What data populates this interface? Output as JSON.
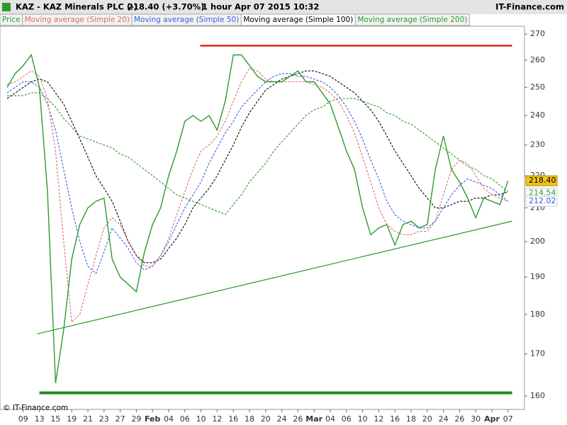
{
  "header": {
    "symbol": "KAZ - KAZ Minerals PLC (-)",
    "quote": "218.40 (+3.70%)",
    "period": "1 hour  Apr 07 2015 10:32",
    "brand": "IT-Finance.com"
  },
  "footer": "© IT-Finance.com",
  "chart_data": {
    "type": "line",
    "log_scale": true,
    "categories": [
      null,
      null,
      "09",
      null,
      "13",
      null,
      "15",
      null,
      "19",
      null,
      "21",
      null,
      "23",
      null,
      "27",
      null,
      "29",
      null,
      "Feb",
      null,
      "04",
      null,
      "06",
      null,
      "10",
      null,
      "12",
      null,
      "16",
      null,
      "18",
      null,
      "20",
      null,
      "24",
      null,
      "26",
      null,
      "Mar",
      null,
      "04",
      null,
      "06",
      null,
      "10",
      null,
      "12",
      null,
      "16",
      null,
      "18",
      null,
      "20",
      null,
      "24",
      null,
      "26",
      null,
      "30",
      null,
      "Apr",
      null,
      "07"
    ],
    "ylim": [
      156.9,
      273.1
    ],
    "yticks": [
      160,
      170,
      180,
      190,
      200,
      210,
      220,
      230,
      240,
      250,
      260,
      270
    ],
    "series": [
      {
        "name": "Price",
        "color": "#2e9a2e",
        "dashed": false,
        "values": [
          250,
          255,
          258,
          262,
          250,
          215,
          163,
          176,
          195,
          205,
          210,
          212,
          213,
          195,
          190,
          188,
          186,
          197,
          205,
          210,
          220,
          228,
          238,
          240,
          238,
          240,
          235,
          245,
          262,
          262,
          258,
          254,
          252,
          252,
          252,
          254,
          256,
          252,
          252,
          248,
          244,
          236,
          228,
          222,
          210,
          202,
          204,
          205,
          199,
          205,
          206,
          204,
          205,
          222,
          233,
          222,
          218,
          213,
          207,
          213,
          212,
          211,
          218.4
        ]
      },
      {
        "name": "Moving average (Simple 20)",
        "color": "#e06a6a",
        "dashed": true,
        "values": [
          251,
          252,
          254,
          256,
          254,
          246,
          228,
          200,
          178,
          180,
          188,
          196,
          204,
          207,
          205,
          200,
          196,
          193,
          193,
          196,
          201,
          208,
          215,
          222,
          228,
          230,
          233,
          238,
          245,
          252,
          257,
          256,
          253,
          252,
          252,
          252,
          252,
          252,
          251,
          250,
          248,
          245,
          240,
          234,
          226,
          218,
          210,
          205,
          203,
          202,
          202,
          203,
          203,
          206,
          214,
          222,
          225,
          224,
          220,
          216,
          214,
          213,
          212
        ]
      },
      {
        "name": "Moving average (Simple 50)",
        "color": "#3a5ee0",
        "dashed": true,
        "values": [
          248,
          250,
          252,
          252,
          250,
          244,
          235,
          222,
          210,
          200,
          193,
          191,
          197,
          204,
          201,
          198,
          194,
          192,
          193,
          196,
          200,
          205,
          210,
          214,
          218,
          224,
          229,
          234,
          238,
          243,
          246,
          249,
          252,
          254,
          255,
          255,
          254,
          254,
          253,
          252,
          250,
          247,
          243,
          238,
          232,
          225,
          219,
          212,
          208,
          206,
          205,
          204,
          204,
          206,
          210,
          214,
          217,
          219,
          218,
          217,
          216,
          214,
          212
        ]
      },
      {
        "name": "Moving average (Simple 100)",
        "color": "#000000",
        "dashed": true,
        "values": [
          246,
          248,
          250,
          252,
          253,
          252,
          248,
          244,
          238,
          232,
          226,
          220,
          216,
          212,
          206,
          200,
          196,
          194,
          194,
          195,
          198,
          201,
          205,
          210,
          213,
          216,
          220,
          225,
          230,
          236,
          241,
          245,
          249,
          251,
          253,
          254,
          255,
          256,
          256,
          255,
          254,
          252,
          250,
          248,
          245,
          242,
          238,
          233,
          228,
          224,
          220,
          216,
          213,
          210,
          210,
          211,
          212,
          212,
          213,
          213,
          214,
          214,
          215
        ]
      },
      {
        "name": "Moving average (Simple 200)",
        "color": "#2a9a2a",
        "dashed": true,
        "values": [
          247,
          247,
          247,
          248,
          248,
          246,
          243,
          239,
          236,
          233,
          232,
          231,
          230,
          229,
          227,
          226,
          224,
          222,
          220,
          218,
          216,
          214,
          213,
          212,
          211,
          210,
          209,
          208,
          211,
          214,
          218,
          221,
          224,
          228,
          231,
          234,
          237,
          240,
          242,
          243,
          245,
          246,
          246,
          246,
          245,
          244,
          243,
          241,
          240,
          238,
          237,
          235,
          233,
          231,
          229,
          227,
          225,
          223,
          222,
          220,
          219,
          217,
          215
        ]
      }
    ],
    "trendlines": [
      {
        "color": "#e02020",
        "width": 2.5,
        "start": [
          23.9,
          265.5
        ],
        "end": [
          62.5,
          265.5
        ]
      },
      {
        "color": "#1e8a1e",
        "width": 4,
        "start": [
          4,
          160.7
        ],
        "end": [
          62.5,
          160.7
        ]
      },
      {
        "color": "#2a9a2a",
        "width": 1.2,
        "start": [
          3.7,
          175
        ],
        "end": [
          62.5,
          206
        ]
      }
    ],
    "last_labels": [
      {
        "value": 218.4,
        "label": "218.40",
        "color": "#000000",
        "background": "#f0c419"
      },
      {
        "value": 214.54,
        "label": "214.54",
        "color": "#2a9a2a",
        "background": "#ffffff"
      },
      {
        "value": 212.02,
        "label": "212.02",
        "color": "#3a5ee0",
        "background": "#ffffff"
      }
    ]
  }
}
